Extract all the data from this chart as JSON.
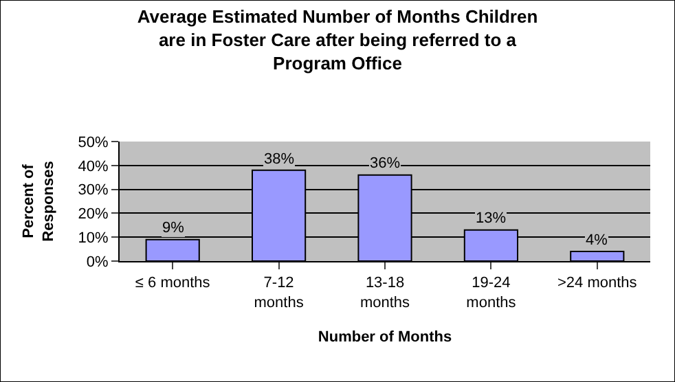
{
  "chart_data": {
    "type": "bar",
    "title": "Average Estimated Number of Months Children\nare in Foster Care after being referred to a\nProgram Office",
    "xlabel": "Number of Months",
    "ylabel": "Percent of\nResponses",
    "categories": [
      "≤ 6 months",
      "7-12\nmonths",
      "13-18\nmonths",
      "19-24\nmonths",
      ">24 months"
    ],
    "values": [
      9,
      38,
      36,
      13,
      4
    ],
    "value_labels": [
      "9%",
      "38%",
      "36%",
      "13%",
      "4%"
    ],
    "color": "#9999ff",
    "ylim": [
      0,
      50
    ],
    "yticks": [
      {
        "value": 0,
        "label": "0%"
      },
      {
        "value": 10,
        "label": "10%"
      },
      {
        "value": 20,
        "label": "20%"
      },
      {
        "value": 30,
        "label": "30%"
      },
      {
        "value": 40,
        "label": "40%"
      },
      {
        "value": 50,
        "label": "50%"
      }
    ],
    "grid": "y",
    "legend": false
  }
}
